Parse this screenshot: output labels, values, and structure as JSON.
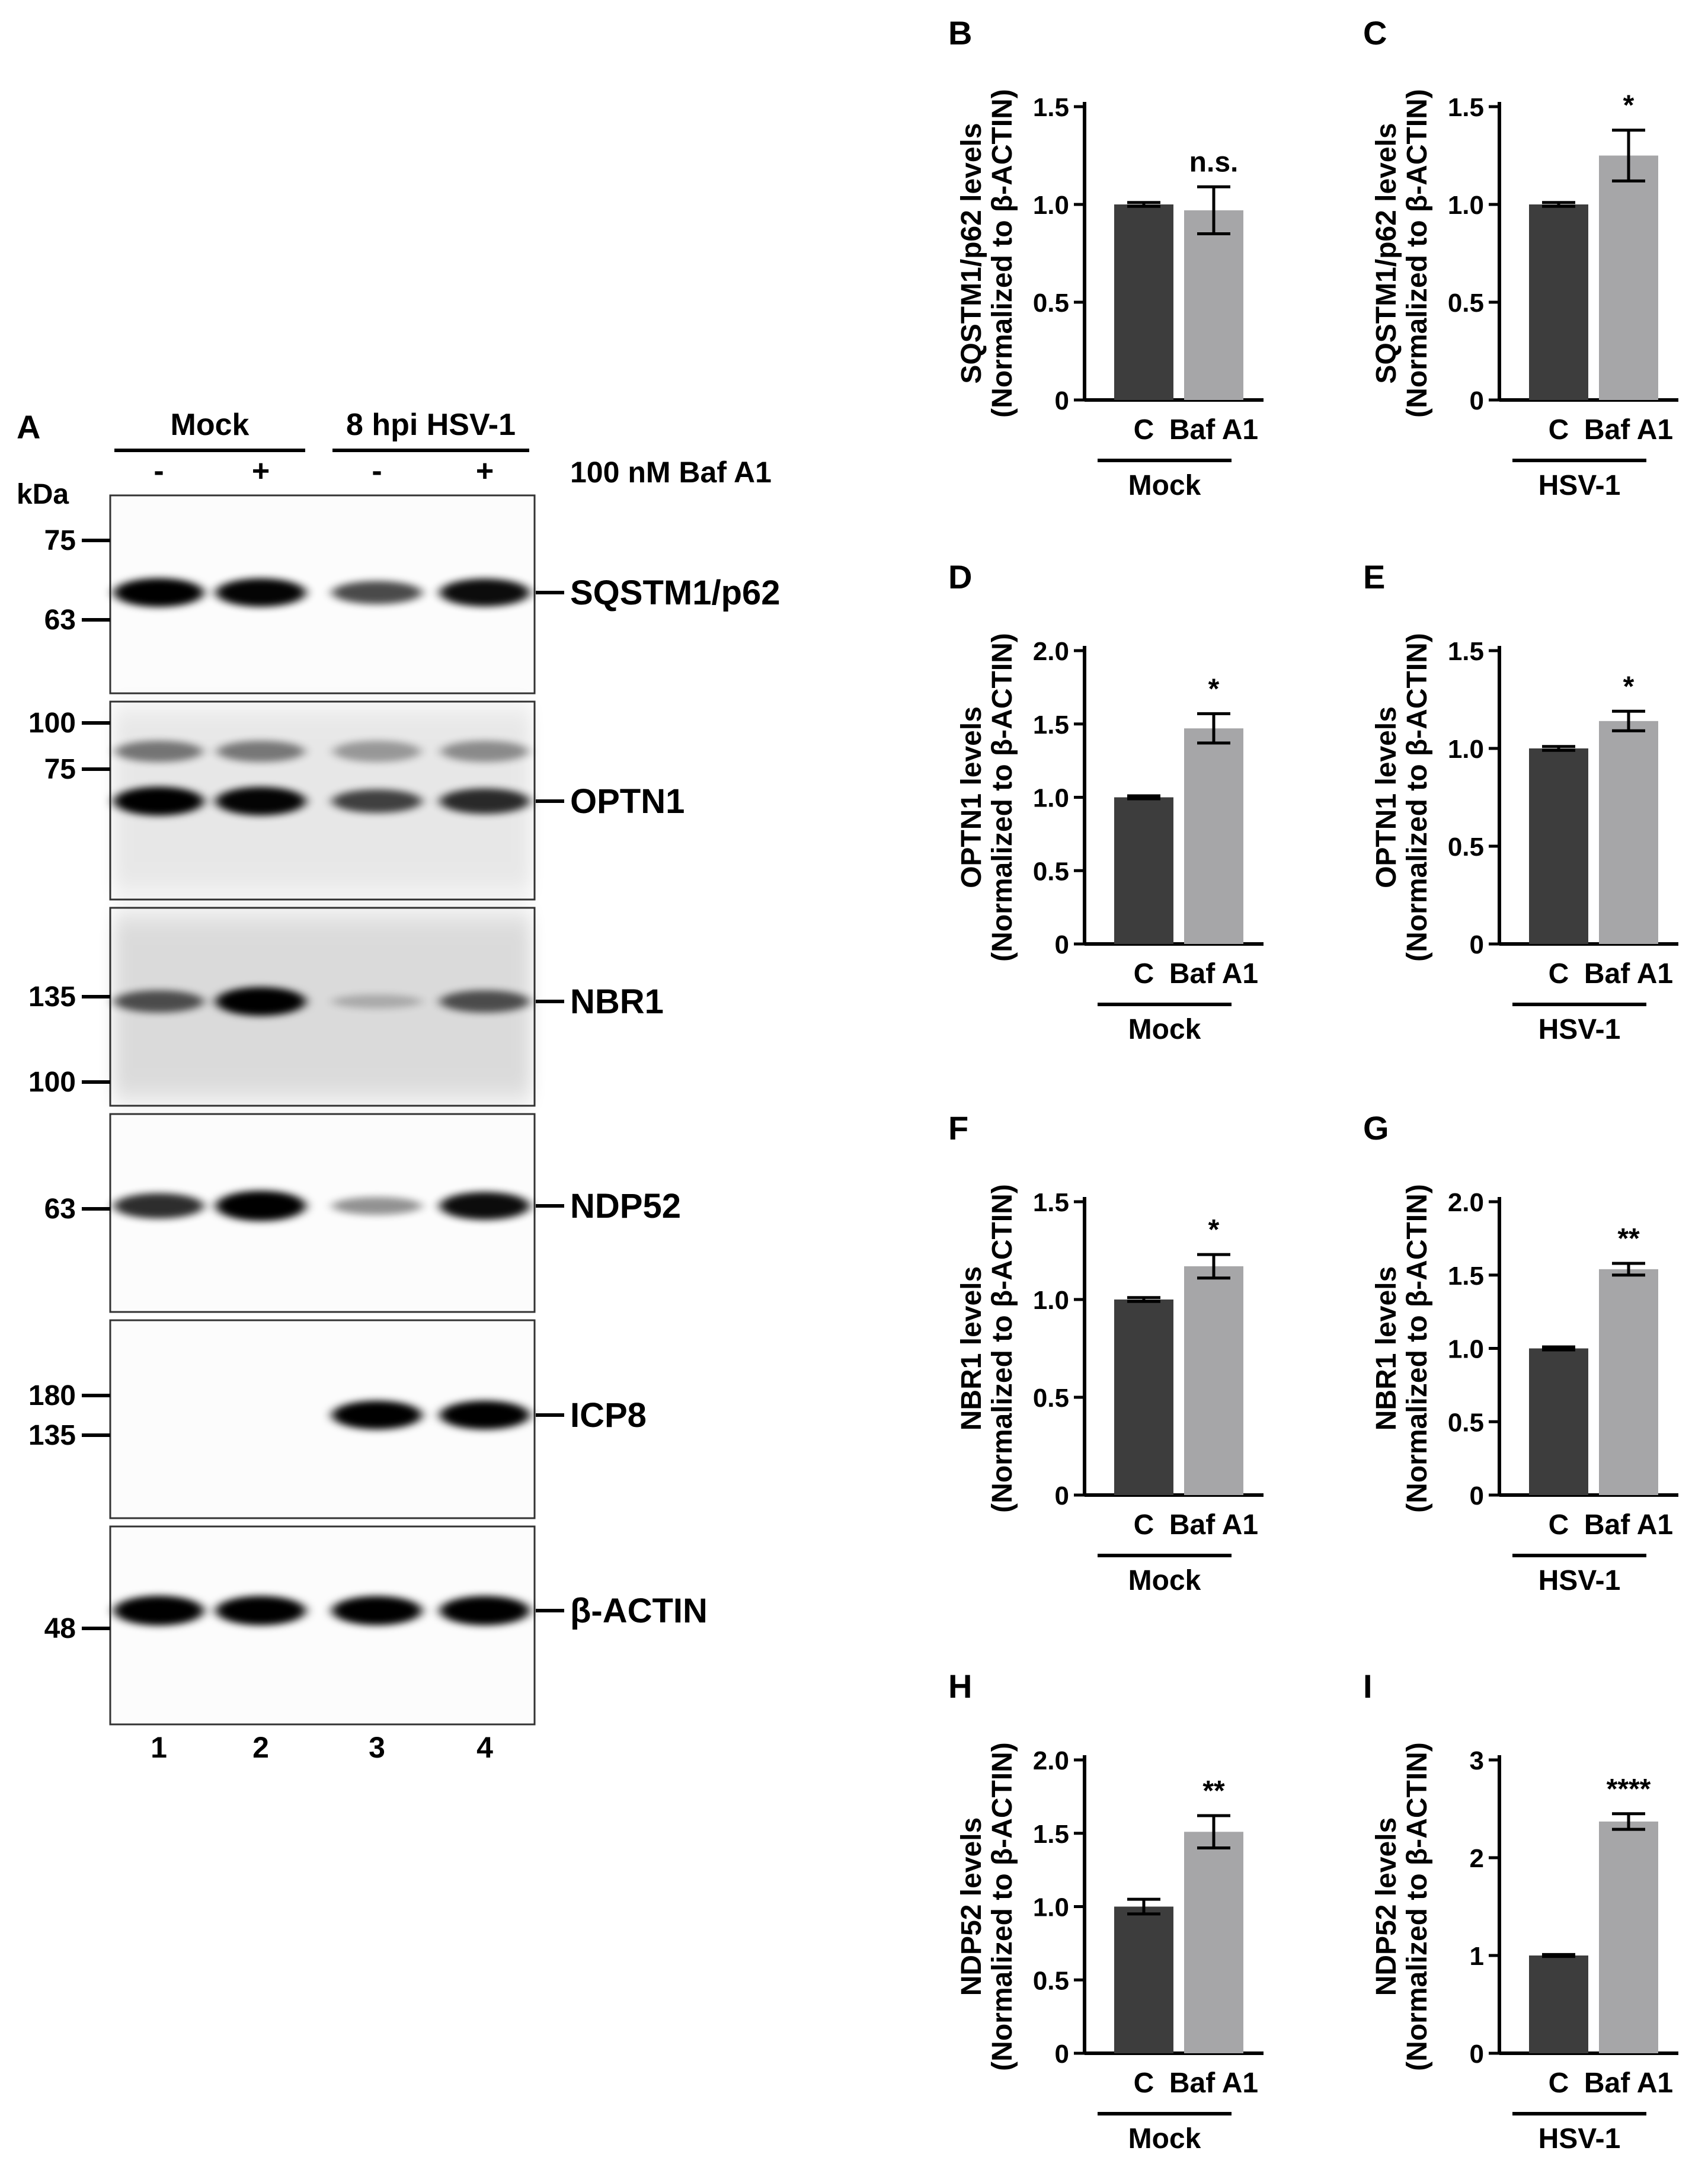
{
  "panel_a": {
    "letter": "A",
    "groups": [
      {
        "label": "Mock",
        "lanes": [
          1,
          2
        ]
      },
      {
        "label": "8 hpi HSV-1",
        "lanes": [
          3,
          4
        ]
      }
    ],
    "treatment_signs": [
      "-",
      "+",
      "-",
      "+"
    ],
    "treatment_label": "100 nM Baf A1",
    "kda_label": "kDa",
    "lane_numbers": [
      "1",
      "2",
      "3",
      "4"
    ],
    "blots": [
      {
        "protein": "SQSTM1/p62",
        "markers": [
          "75",
          "63"
        ],
        "band_intensity": [
          0.9,
          0.88,
          0.6,
          0.85
        ]
      },
      {
        "protein": "OPTN1",
        "markers": [
          "100",
          "75"
        ],
        "band_intensity": [
          0.9,
          0.88,
          0.62,
          0.72
        ]
      },
      {
        "protein": "NBR1",
        "markers": [
          "135",
          "100"
        ],
        "band_intensity": [
          0.55,
          0.9,
          0.12,
          0.55
        ]
      },
      {
        "protein": "NDP52",
        "markers": [
          "63"
        ],
        "band_intensity": [
          0.72,
          0.98,
          0.32,
          0.85
        ]
      },
      {
        "protein": "ICP8",
        "markers": [
          "180",
          "135"
        ],
        "band_intensity": [
          0.0,
          0.0,
          0.9,
          0.9
        ]
      },
      {
        "protein": "β-ACTIN",
        "markers": [
          "48"
        ],
        "band_intensity": [
          0.95,
          0.93,
          0.92,
          0.93
        ]
      }
    ]
  },
  "chart_data": [
    {
      "panel": "B",
      "type": "bar",
      "ylabel": [
        "SQSTM1/p62 levels",
        "(Normalized to β-ACTIN)"
      ],
      "categories": [
        "C",
        "Baf A1"
      ],
      "values": [
        1.0,
        0.97
      ],
      "errors": [
        0.01,
        0.12
      ],
      "ylim": [
        0,
        1.5
      ],
      "yticks": [
        "0",
        "0.5",
        "1.0",
        "1.5"
      ],
      "group_label": "Mock",
      "significance": "n.s."
    },
    {
      "panel": "C",
      "type": "bar",
      "ylabel": [
        "SQSTM1/p62 levels",
        "(Normalized to β-ACTIN)"
      ],
      "categories": [
        "C",
        "Baf A1"
      ],
      "values": [
        1.0,
        1.25
      ],
      "errors": [
        0.01,
        0.13
      ],
      "ylim": [
        0,
        1.5
      ],
      "yticks": [
        "0",
        "0.5",
        "1.0",
        "1.5"
      ],
      "group_label": "HSV-1",
      "significance": "*"
    },
    {
      "panel": "D",
      "type": "bar",
      "ylabel": [
        "OPTN1 levels",
        "(Normalized to β-ACTIN)"
      ],
      "categories": [
        "C",
        "Baf A1"
      ],
      "values": [
        1.0,
        1.47
      ],
      "errors": [
        0.01,
        0.1
      ],
      "ylim": [
        0,
        2.0
      ],
      "yticks": [
        "0",
        "0.5",
        "1.0",
        "1.5",
        "2.0"
      ],
      "group_label": "Mock",
      "significance": "*"
    },
    {
      "panel": "E",
      "type": "bar",
      "ylabel": [
        "OPTN1 levels",
        "(Normalized to β-ACTIN)"
      ],
      "categories": [
        "C",
        "Baf A1"
      ],
      "values": [
        1.0,
        1.14
      ],
      "errors": [
        0.01,
        0.05
      ],
      "ylim": [
        0,
        1.5
      ],
      "yticks": [
        "0",
        "0.5",
        "1.0",
        "1.5"
      ],
      "group_label": "HSV-1",
      "significance": "*"
    },
    {
      "panel": "F",
      "type": "bar",
      "ylabel": [
        "NBR1 levels",
        "(Normalized to β-ACTIN)"
      ],
      "categories": [
        "C",
        "Baf A1"
      ],
      "values": [
        1.0,
        1.17
      ],
      "errors": [
        0.01,
        0.06
      ],
      "ylim": [
        0,
        1.5
      ],
      "yticks": [
        "0",
        "0.5",
        "1.0",
        "1.5"
      ],
      "group_label": "Mock",
      "significance": "*"
    },
    {
      "panel": "G",
      "type": "bar",
      "ylabel": [
        "NBR1 levels",
        "(Normalized to β-ACTIN)"
      ],
      "categories": [
        "C",
        "Baf A1"
      ],
      "values": [
        1.0,
        1.54
      ],
      "errors": [
        0.01,
        0.04
      ],
      "ylim": [
        0,
        2.0
      ],
      "yticks": [
        "0",
        "0.5",
        "1.0",
        "1.5",
        "2.0"
      ],
      "group_label": "HSV-1",
      "significance": "**"
    },
    {
      "panel": "H",
      "type": "bar",
      "ylabel": [
        "NDP52 levels",
        "(Normalized to β-ACTIN)"
      ],
      "categories": [
        "C",
        "Baf A1"
      ],
      "values": [
        1.0,
        1.51
      ],
      "errors": [
        0.05,
        0.11
      ],
      "ylim": [
        0,
        2.0
      ],
      "yticks": [
        "0",
        "0.5",
        "1.0",
        "1.5",
        "2.0"
      ],
      "group_label": "Mock",
      "significance": "**"
    },
    {
      "panel": "I",
      "type": "bar",
      "ylabel": [
        "NDP52 levels",
        "(Normalized to β-ACTIN)"
      ],
      "categories": [
        "C",
        "Baf A1"
      ],
      "values": [
        1.0,
        2.37
      ],
      "errors": [
        0.01,
        0.08
      ],
      "ylim": [
        0,
        3
      ],
      "yticks": [
        "0",
        "1",
        "2",
        "3"
      ],
      "group_label": "HSV-1",
      "significance": "****"
    }
  ],
  "colors": {
    "control_bar": "#3d3d3d",
    "baf_bar": "#a6a6a8",
    "ink": "#000000"
  }
}
